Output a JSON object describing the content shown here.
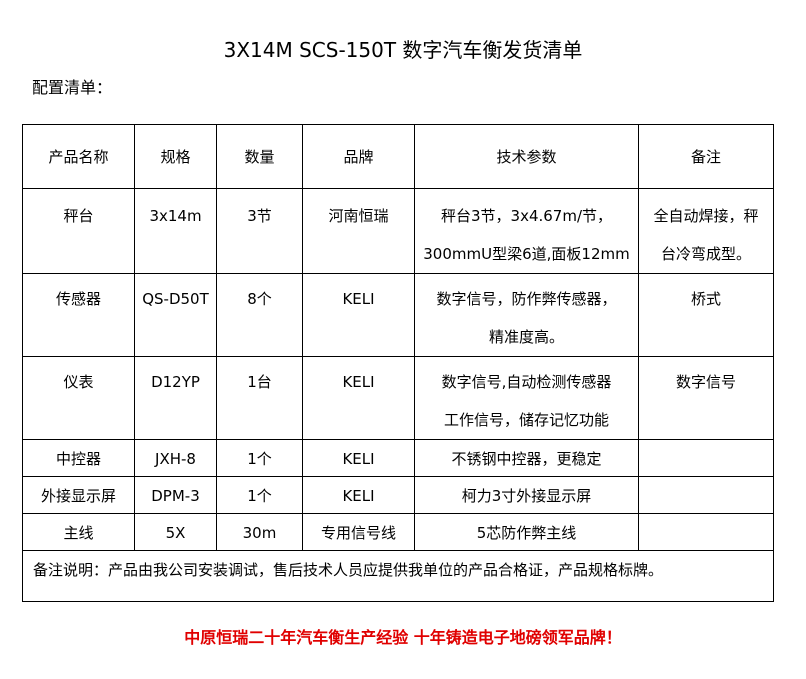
{
  "title": "3X14M SCS-150T 数字汽车衡发货清单",
  "subtitle": "配置清单：",
  "headers": [
    "产品名称",
    "规格",
    "数量",
    "品牌",
    "技术参数",
    "备注"
  ],
  "rows": [
    {
      "name": "秤台",
      "spec": "3x14m",
      "qty": "3节",
      "brand": "河南恒瑞",
      "tech": [
        "秤台3节，3x4.67m/节，",
        "300mmU型梁6道,面板12mm"
      ],
      "remark": [
        "全自动焊接，秤",
        "台冷弯成型。"
      ]
    },
    {
      "name": "传感器",
      "spec": "QS-D50T",
      "qty": "8个",
      "brand": "KELI",
      "tech": [
        "数字信号，防作弊传感器，",
        "精准度高。"
      ],
      "remark": [
        "桥式"
      ]
    },
    {
      "name": "仪表",
      "spec": "D12YP",
      "qty": "1台",
      "brand": "KELI",
      "tech": [
        "数字信号,自动检测传感器",
        "工作信号，储存记忆功能"
      ],
      "remark": [
        "数字信号"
      ]
    },
    {
      "name": "中控器",
      "spec": "JXH-8",
      "qty": "1个",
      "brand": "KELI",
      "tech": [
        "不锈钢中控器，更稳定"
      ],
      "remark": [
        ""
      ]
    },
    {
      "name": "外接显示屏",
      "spec": "DPM-3",
      "qty": "1个",
      "brand": "KELI",
      "tech": [
        "柯力3寸外接显示屏"
      ],
      "remark": [
        ""
      ]
    },
    {
      "name": "主线",
      "spec": "5X",
      "qty": "30m",
      "brand": "专用信号线",
      "tech": [
        "5芯防作弊主线"
      ],
      "remark": [
        ""
      ]
    }
  ],
  "note": "备注说明：产品由我公司安装调试，售后技术人员应提供我单位的产品合格证，产品规格标牌。",
  "slogan": "中原恒瑞二十年汽车衡生产经验 十年铸造电子地磅领军品牌！",
  "colors": {
    "slogan": "#e00000"
  }
}
